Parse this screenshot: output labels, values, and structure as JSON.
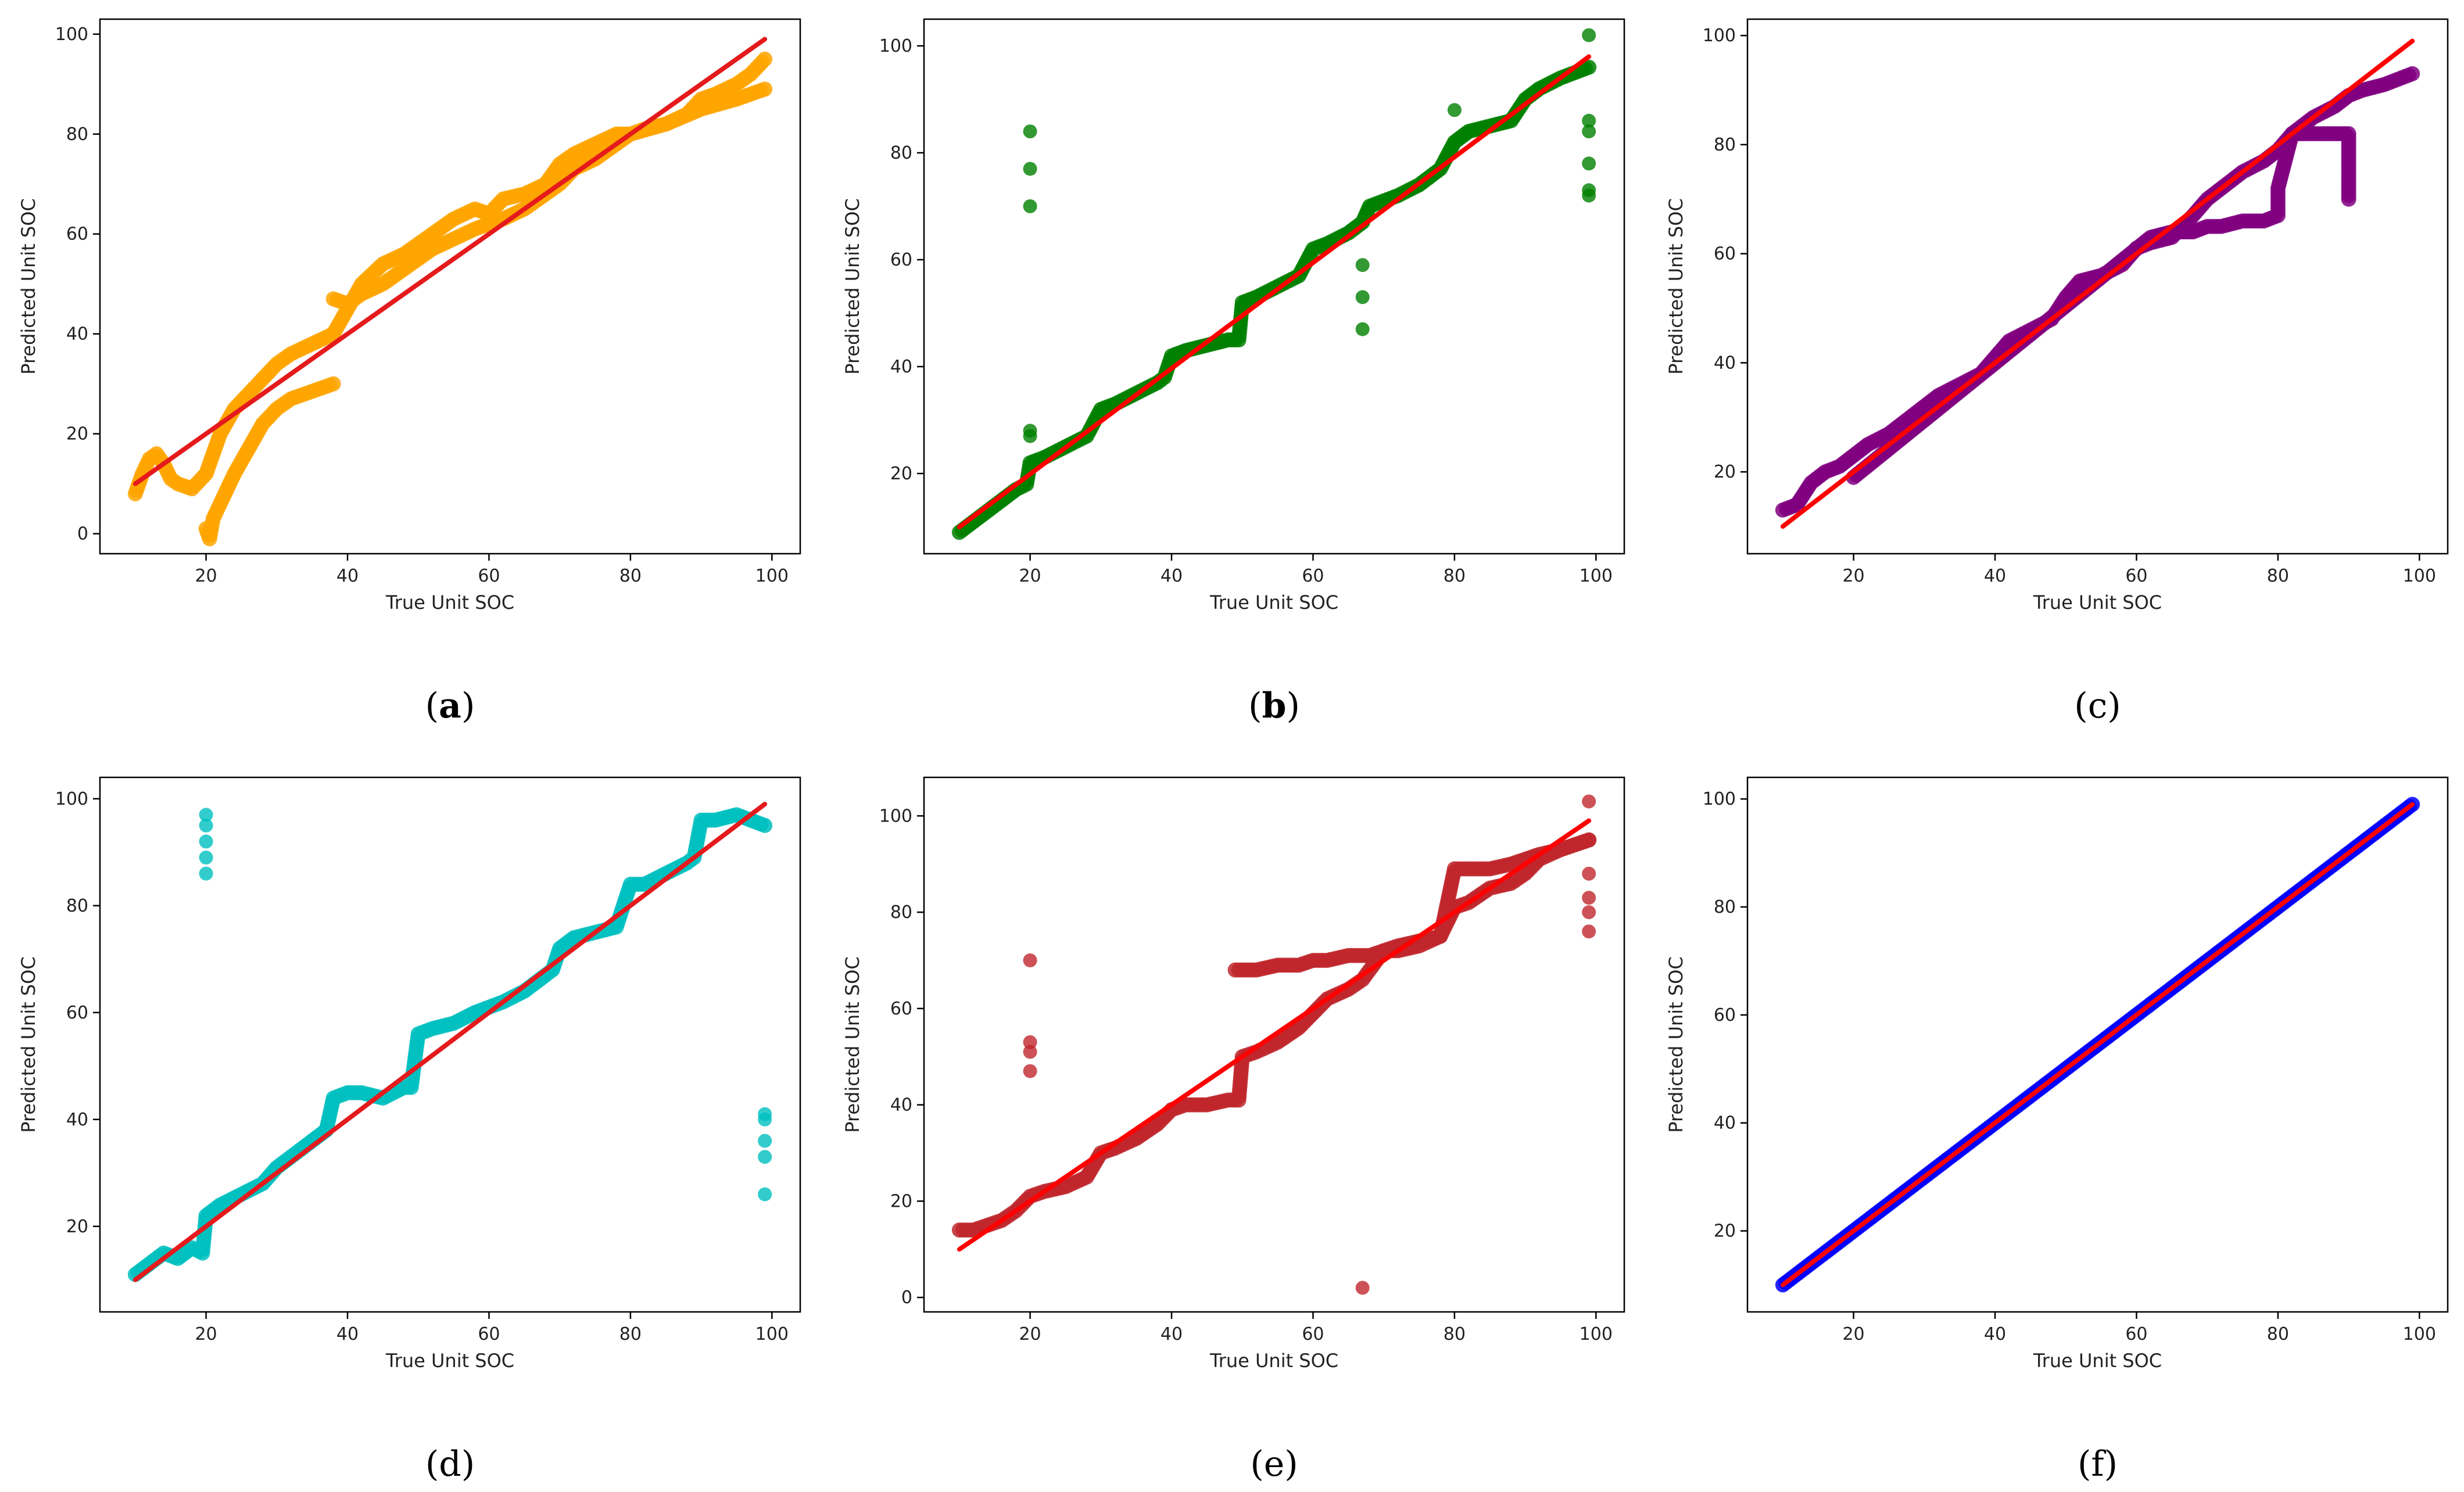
{
  "chart_data": [
    {
      "id": "a",
      "type": "scatter",
      "caption": "a",
      "xlabel": "True Unit SOC",
      "ylabel": "Predicted Unit SOC",
      "xlim": [
        5,
        104
      ],
      "ylim": [
        -4,
        103
      ],
      "xticks": [
        20,
        40,
        60,
        80,
        100
      ],
      "yticks": [
        0,
        20,
        40,
        60,
        80,
        100
      ],
      "point_color": "#ffa500",
      "fit_color": "#e41a1c",
      "fit_line": {
        "x": [
          10,
          99
        ],
        "y": [
          10,
          99
        ]
      },
      "series": [
        {
          "x": [
            10,
            11,
            12,
            13,
            14,
            15,
            16,
            18,
            20,
            22,
            24,
            26,
            28,
            30,
            32,
            35,
            38,
            40,
            42,
            45,
            48,
            50,
            52,
            55,
            58,
            60,
            62,
            65,
            68,
            70,
            72,
            75,
            78,
            80,
            82,
            85,
            88,
            90,
            92,
            95,
            97,
            99
          ],
          "y": [
            8,
            12,
            15,
            16,
            14,
            11,
            10,
            9,
            12,
            20,
            25,
            28,
            31,
            34,
            36,
            38,
            40,
            45,
            50,
            54,
            56,
            58,
            60,
            63,
            65,
            64,
            67,
            68,
            70,
            74,
            76,
            78,
            80,
            80,
            81,
            82,
            84,
            87,
            88,
            90,
            92,
            95
          ]
        },
        {
          "x": [
            20,
            20.5,
            21,
            22,
            24,
            26,
            28,
            30,
            32,
            34,
            36,
            38
          ],
          "y": [
            1,
            -1,
            3,
            6,
            12,
            17,
            22,
            25,
            27,
            28,
            29,
            30
          ]
        },
        {
          "x": [
            38,
            40,
            42,
            45,
            48,
            50,
            52,
            55,
            58,
            60,
            62,
            65,
            68,
            70,
            72,
            75,
            78,
            80,
            85,
            90,
            95,
            99
          ],
          "y": [
            47,
            46,
            48,
            50,
            53,
            55,
            57,
            59,
            61,
            62,
            63,
            65,
            68,
            70,
            73,
            75,
            78,
            80,
            82,
            85,
            87,
            89
          ]
        }
      ]
    },
    {
      "id": "b",
      "type": "scatter",
      "caption": "b",
      "xlabel": "True Unit SOC",
      "ylabel": "Predicted Unit SOC",
      "xlim": [
        5,
        104
      ],
      "ylim": [
        5,
        105
      ],
      "xticks": [
        20,
        40,
        60,
        80,
        100
      ],
      "yticks": [
        20,
        40,
        60,
        80,
        100
      ],
      "point_color": "#008000",
      "fit_color": "#ff0000",
      "fit_line": {
        "x": [
          10,
          99
        ],
        "y": [
          10,
          98
        ]
      },
      "series": [
        {
          "x": [
            10,
            12,
            14,
            16,
            18,
            19.5,
            20,
            22,
            25,
            28,
            30,
            32,
            35,
            38,
            39,
            40,
            42,
            45,
            48,
            49.5,
            50,
            52,
            55,
            58,
            60,
            62,
            65,
            67,
            68,
            70,
            72,
            75,
            78,
            80,
            82,
            85,
            88,
            90,
            92,
            95,
            97,
            99
          ],
          "y": [
            9,
            11,
            13,
            15,
            17,
            18,
            22,
            23,
            25,
            27,
            32,
            33,
            35,
            37,
            38,
            42,
            43,
            44,
            45,
            45,
            52,
            53,
            55,
            57,
            62,
            63,
            65,
            67,
            70,
            71,
            72,
            74,
            77,
            82,
            84,
            85,
            86,
            90,
            92,
            94,
            95,
            96
          ]
        },
        {
          "x": [
            20,
            20,
            20,
            20,
            20,
            67,
            67,
            67,
            80,
            99,
            99,
            99,
            99,
            99,
            99
          ],
          "y": [
            84,
            77,
            70,
            28,
            27,
            59,
            53,
            47,
            88,
            102,
            86,
            84,
            78,
            73,
            72
          ]
        }
      ]
    },
    {
      "id": "c",
      "type": "scatter",
      "caption": "c",
      "xlabel": "True Unit SOC",
      "ylabel": "Predicted Unit SOC",
      "xlim": [
        5,
        104
      ],
      "ylim": [
        5,
        103
      ],
      "xticks": [
        20,
        40,
        60,
        80,
        100
      ],
      "yticks": [
        20,
        40,
        60,
        80,
        100
      ],
      "point_color": "#800080",
      "fit_color": "#ff0000",
      "fit_line": {
        "x": [
          10,
          99
        ],
        "y": [
          10,
          99
        ]
      },
      "series": [
        {
          "x": [
            10,
            12,
            14,
            16,
            18,
            20,
            22,
            25,
            28,
            30,
            32,
            35,
            38,
            40,
            42,
            45,
            48,
            50,
            52,
            55,
            58,
            60,
            62,
            65,
            68,
            70,
            72,
            75,
            78,
            80,
            82,
            85,
            88,
            90,
            92,
            95,
            97,
            99
          ],
          "y": [
            13,
            14,
            18,
            20,
            21,
            23,
            25,
            27,
            30,
            32,
            34,
            36,
            38,
            41,
            44,
            46,
            48,
            52,
            55,
            56,
            58,
            61,
            62,
            63,
            67,
            70,
            72,
            75,
            77,
            79,
            82,
            85,
            87,
            89,
            90,
            91,
            92,
            93
          ]
        },
        {
          "x": [
            20,
            62,
            65,
            68,
            70,
            72,
            75,
            78,
            80,
            80,
            82,
            85,
            88,
            90,
            90
          ],
          "y": [
            19,
            63,
            64,
            64,
            65,
            65,
            66,
            66,
            67,
            72,
            82,
            82,
            82,
            82,
            70
          ]
        }
      ]
    },
    {
      "id": "d",
      "type": "scatter",
      "caption": "d",
      "xlabel": "True Unit SOC",
      "ylabel": "Predicted Unit SOC",
      "xlim": [
        5,
        104
      ],
      "ylim": [
        4,
        104
      ],
      "xticks": [
        20,
        40,
        60,
        80,
        100
      ],
      "yticks": [
        20,
        40,
        60,
        80,
        100
      ],
      "point_color": "#00bfbf",
      "fit_color": "#e41a1c",
      "fit_line": {
        "x": [
          10,
          99
        ],
        "y": [
          10,
          99
        ]
      },
      "series": [
        {
          "x": [
            10,
            12,
            14,
            16,
            18,
            19.5,
            20,
            22,
            25,
            28,
            30,
            32,
            35,
            37,
            38,
            40,
            42,
            45,
            48,
            49,
            50,
            52,
            55,
            58,
            60,
            62,
            65,
            68,
            69,
            70,
            72,
            75,
            78,
            80,
            82,
            85,
            88,
            89,
            90,
            92,
            95,
            97,
            99
          ],
          "y": [
            11,
            13,
            15,
            14,
            16,
            15,
            22,
            24,
            26,
            28,
            31,
            33,
            36,
            38,
            44,
            45,
            45,
            44,
            46,
            46,
            56,
            57,
            58,
            60,
            61,
            62,
            64,
            67,
            68,
            72,
            74,
            75,
            76,
            84,
            84,
            86,
            88,
            89,
            96,
            96,
            97,
            96,
            95
          ]
        },
        {
          "x": [
            20,
            20,
            20,
            20,
            20,
            99,
            99,
            99,
            99,
            99
          ],
          "y": [
            97,
            95,
            92,
            89,
            86,
            41,
            40,
            36,
            33,
            26
          ]
        }
      ]
    },
    {
      "id": "e",
      "type": "scatter",
      "caption": "e",
      "xlabel": "True Unit SOC",
      "ylabel": "Predicted Unit SOC",
      "xlim": [
        5,
        104
      ],
      "ylim": [
        -3,
        108
      ],
      "xticks": [
        20,
        40,
        60,
        80,
        100
      ],
      "yticks": [
        0,
        20,
        40,
        60,
        80,
        100
      ],
      "point_color": "#c0272d",
      "fit_color": "#ff0000",
      "fit_line": {
        "x": [
          10,
          99
        ],
        "y": [
          10,
          99
        ]
      },
      "series": [
        {
          "x": [
            10,
            12,
            14,
            16,
            18,
            20,
            22,
            25,
            28,
            30,
            32,
            35,
            38,
            40,
            42,
            45,
            48,
            49.5,
            50,
            52,
            55,
            58,
            60,
            62,
            65,
            67,
            68,
            70,
            72,
            75,
            78,
            80,
            82,
            85,
            88,
            90,
            92,
            95,
            97,
            99
          ],
          "y": [
            14,
            14,
            15,
            16,
            18,
            21,
            22,
            23,
            25,
            30,
            31,
            33,
            36,
            39,
            40,
            40,
            41,
            41,
            50,
            51,
            53,
            56,
            59,
            62,
            64,
            66,
            68,
            72,
            73,
            74,
            75,
            81,
            82,
            85,
            86,
            88,
            91,
            93,
            94,
            95
          ]
        },
        {
          "x": [
            49,
            52,
            55,
            58,
            60,
            62,
            65,
            68,
            70,
            72,
            75,
            78,
            80,
            82,
            85,
            88,
            90,
            92,
            95,
            97,
            99
          ],
          "y": [
            68,
            68,
            69,
            69,
            70,
            70,
            71,
            71,
            72,
            72,
            73,
            75,
            89,
            89,
            89,
            90,
            91,
            92,
            93,
            94,
            95
          ]
        },
        {
          "x": [
            20,
            20,
            20,
            20,
            67,
            99,
            99,
            99,
            99,
            99
          ],
          "y": [
            70,
            53,
            51,
            47,
            2,
            103,
            88,
            83,
            80,
            76
          ]
        }
      ]
    },
    {
      "id": "f",
      "type": "scatter",
      "caption": "f",
      "xlabel": "True Unit SOC",
      "ylabel": "Predicted Unit SOC",
      "xlim": [
        5,
        104
      ],
      "ylim": [
        5,
        104
      ],
      "xticks": [
        20,
        40,
        60,
        80,
        100
      ],
      "yticks": [
        20,
        40,
        60,
        80,
        100
      ],
      "point_color": "#0000ff",
      "fit_color": "#ff0000",
      "fit_line": {
        "x": [
          10,
          99
        ],
        "y": [
          10,
          99
        ]
      },
      "series": [
        {
          "x": [
            10,
            13,
            16,
            20,
            24,
            28,
            32,
            36,
            40,
            44,
            48,
            52,
            56,
            60,
            64,
            68,
            72,
            76,
            80,
            84,
            88,
            92,
            96,
            99
          ],
          "y": [
            10,
            13,
            16,
            20,
            24,
            28,
            32,
            36,
            40,
            44,
            48,
            52,
            56,
            60,
            64,
            68,
            72,
            76,
            80,
            84,
            88,
            92,
            96,
            99
          ]
        }
      ]
    }
  ]
}
